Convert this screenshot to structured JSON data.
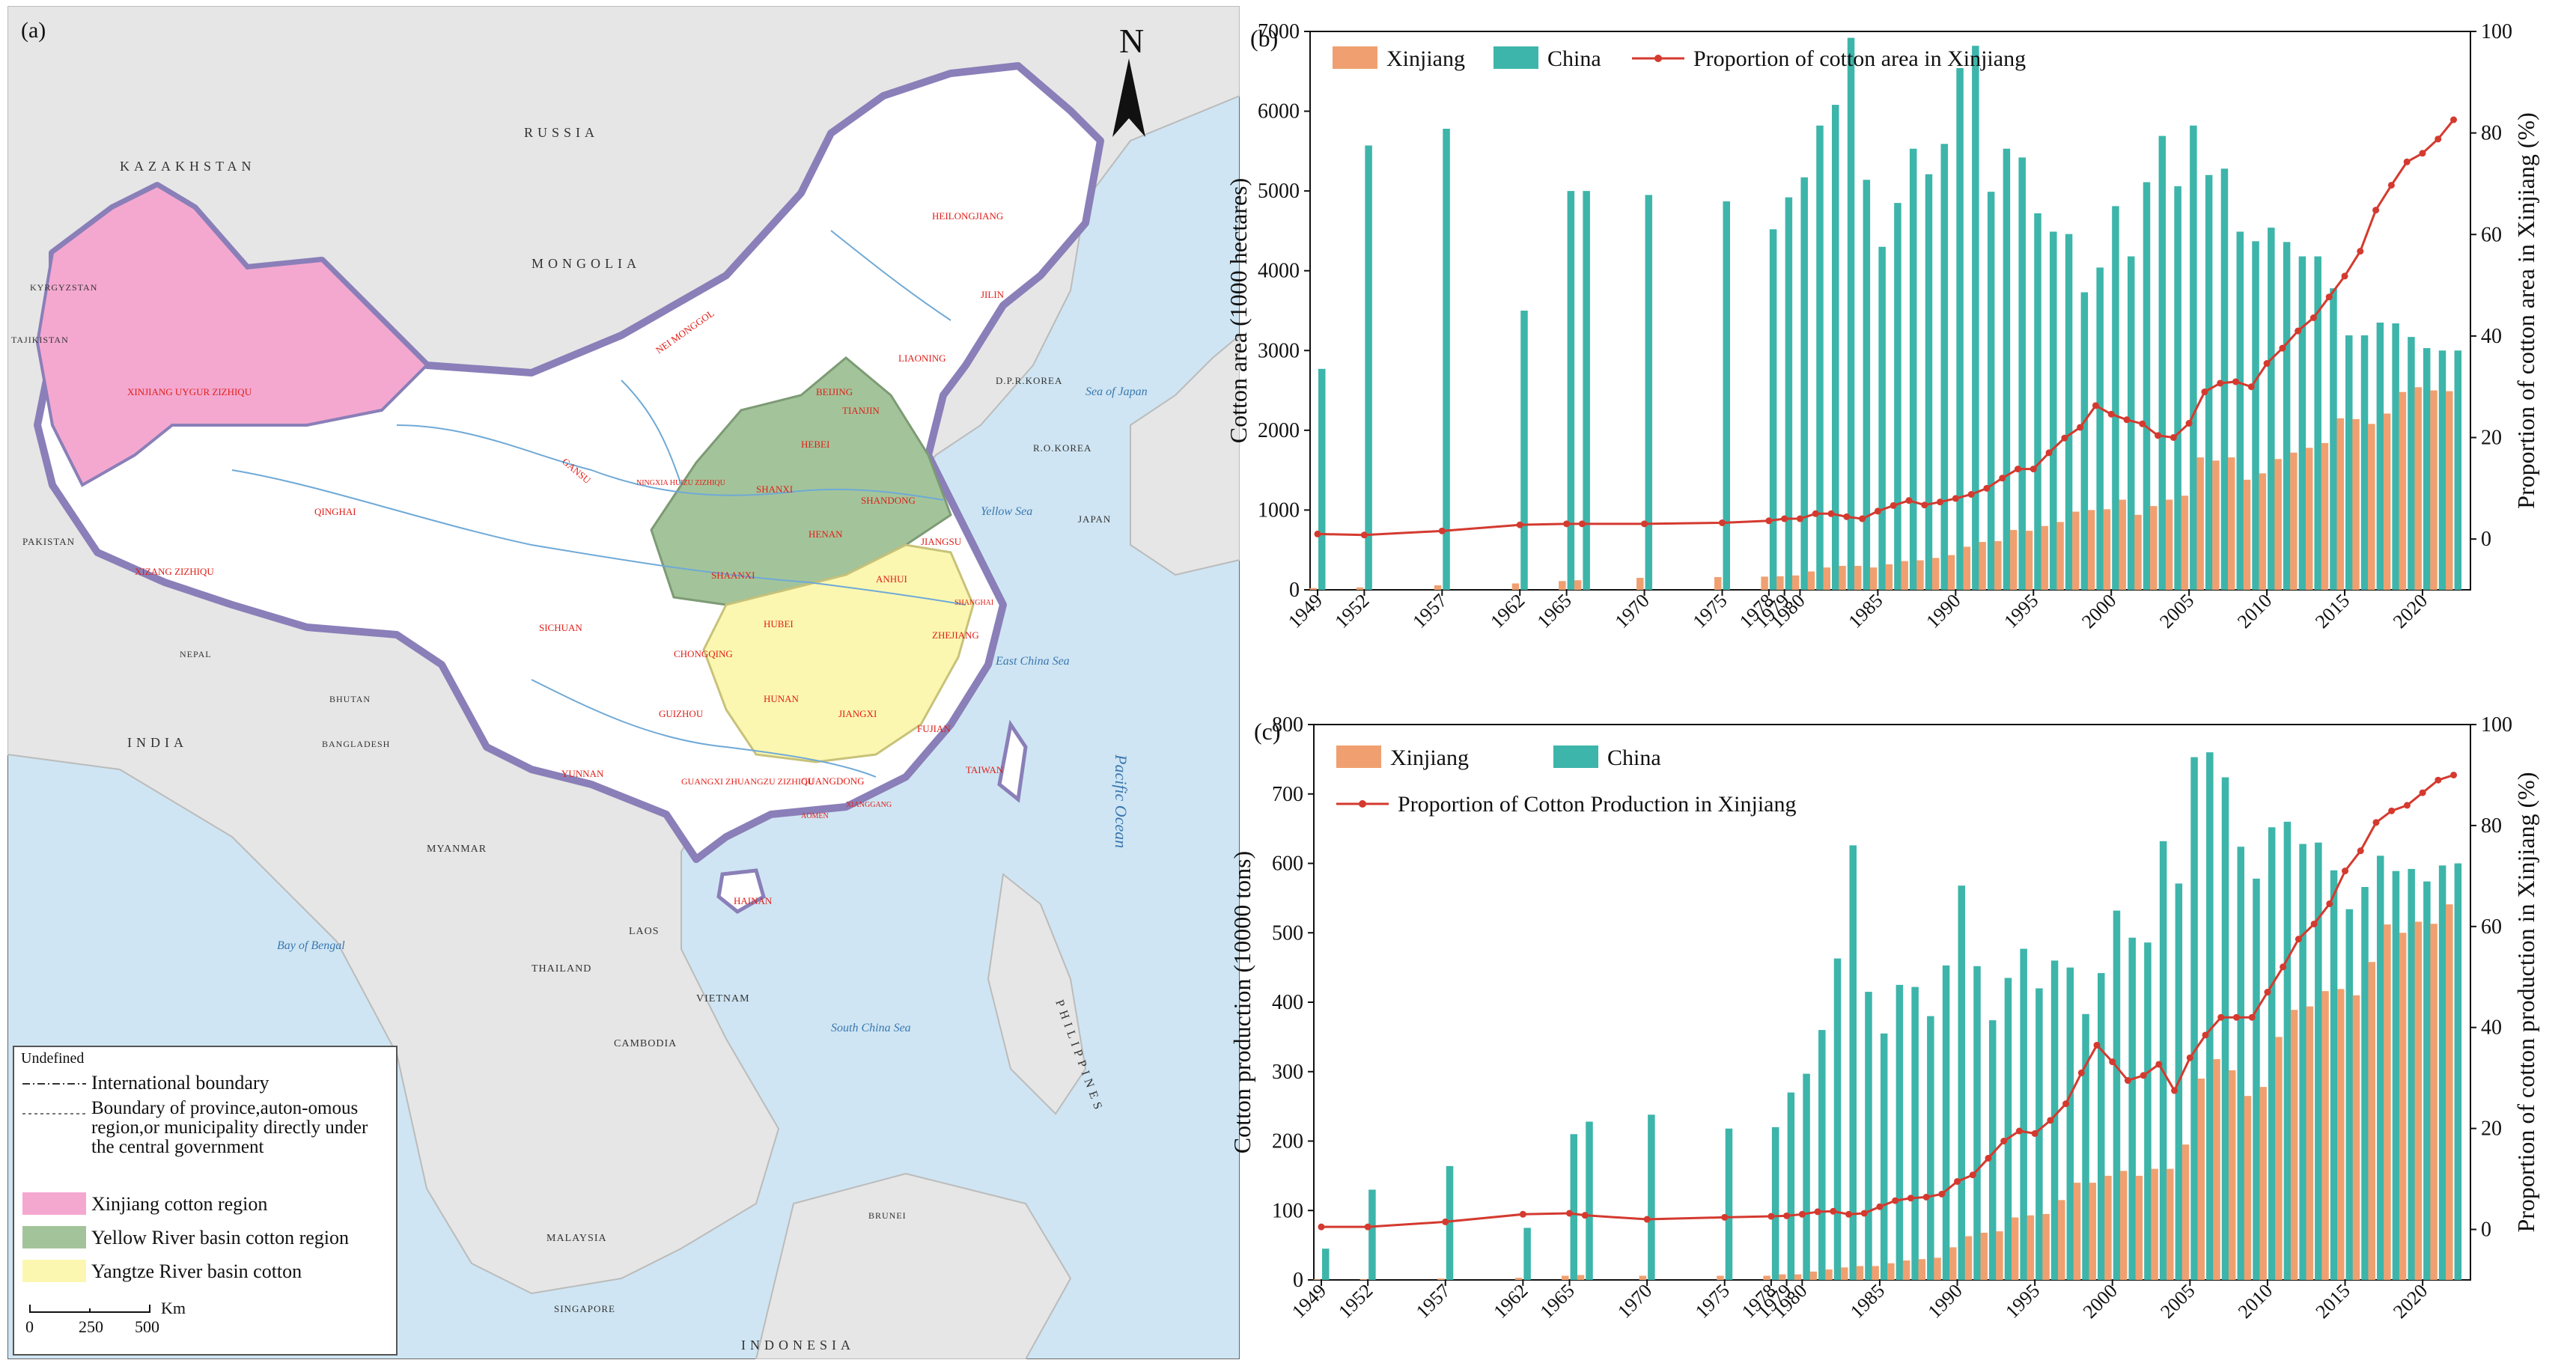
{
  "map_panel": {
    "panel_label": "(a)",
    "north_label": "N",
    "countries": [
      "KAZAKHSTAN",
      "RUSSIA",
      "MONGOLIA",
      "KYRGYZSTAN",
      "TAJIKISTAN",
      "PAKISTAN",
      "INDIA",
      "NEPAL",
      "BHUTAN",
      "BANGLADESH",
      "MYANMAR",
      "LAOS",
      "THAILAND",
      "VIETNAM",
      "CAMBODIA",
      "MALAYSIA",
      "SINGAPORE",
      "INDONESIA",
      "BRUNEI",
      "PHILIPPINES",
      "D.P.R.KOREA",
      "R.O.KOREA",
      "JAPAN"
    ],
    "seas": [
      "Sea of Japan",
      "Yellow Sea",
      "East China Sea",
      "South China Sea",
      "Bay of Bengal",
      "Pacific Ocean"
    ],
    "provinces": [
      "XINJIANG UYGUR ZIZHIQU",
      "XIZANG ZIZHIQU",
      "QINGHAI",
      "GANSU",
      "NEI MONGGOL",
      "HEILONGJIANG",
      "JILIN",
      "LIAONING",
      "BEIJING",
      "TIANJIN",
      "HEBEI",
      "SHANXI",
      "SHANDONG",
      "HENAN",
      "SHAANXI",
      "NINGXIA HUIZU ZIZHIQU",
      "SICHUAN",
      "CHONGQING",
      "HUBEI",
      "ANHUI",
      "JIANGSU",
      "SHANGHAI",
      "ZHEJIANG",
      "HUNAN",
      "JIANGXI",
      "FUJIAN",
      "GUIZHOU",
      "YUNNAN",
      "GUANGXI ZHUANGZU ZIZHIQU",
      "GUANGDONG",
      "HAINAN",
      "TAIWAN",
      "XIANGGANG",
      "AOMEN"
    ],
    "legend": {
      "title": "Undefined",
      "items": [
        {
          "type": "line-dash",
          "label": "International boundary"
        },
        {
          "type": "line-dot",
          "label": "Boundary of province,auton-omous region,or municipality directly under the central government"
        },
        {
          "type": "fill",
          "color": "#f4a8d0",
          "label": "Xinjiang cotton region"
        },
        {
          "type": "fill",
          "color": "#a3c49a",
          "label": "Yellow River basin cotton region"
        },
        {
          "type": "fill",
          "color": "#fbf7b0",
          "label": "Yangtze River basin cotton"
        }
      ],
      "scale_ticks": [
        "0",
        "250",
        "500"
      ],
      "scale_unit": "Km"
    }
  },
  "chart_data": [
    {
      "panel_label": "(b)",
      "type": "bar",
      "legend": [
        "Xinjiang",
        "China",
        "Proportion of cotton area in Xinjiang"
      ],
      "ylabel": "Cotton area (1000 hectares)",
      "y2label": "Proportion of cotton area in Xinjiang (%)",
      "ylim": [
        0,
        7000
      ],
      "y2lim": [
        -10,
        100
      ],
      "yticks": [
        0,
        1000,
        2000,
        3000,
        4000,
        5000,
        6000,
        7000
      ],
      "y2ticks": [
        0,
        20,
        40,
        60,
        80,
        100
      ],
      "xticks": [
        "1949",
        "1952",
        "1957",
        "1962",
        "1965",
        "1970",
        "1975",
        "1978",
        "1979",
        "1980",
        "1985",
        "1990",
        "1995",
        "2000",
        "2005",
        "2010",
        "2015",
        "2020"
      ],
      "years": [
        1949,
        1952,
        1957,
        1962,
        1965,
        1966,
        1970,
        1975,
        1978,
        1979,
        1980,
        1981,
        1982,
        1983,
        1984,
        1985,
        1986,
        1987,
        1988,
        1989,
        1990,
        1991,
        1992,
        1993,
        1994,
        1995,
        1996,
        1997,
        1998,
        1999,
        2000,
        2001,
        2002,
        2003,
        2004,
        2005,
        2006,
        2007,
        2008,
        2009,
        2010,
        2011,
        2012,
        2013,
        2014,
        2015,
        2016,
        2017,
        2018,
        2019,
        2020,
        2021,
        2022
      ],
      "series": [
        {
          "name": "Xinjiang",
          "type": "bar",
          "color": "#f0a070",
          "values": [
            22,
            30,
            56,
            80,
            110,
            120,
            150,
            160,
            165,
            170,
            180,
            230,
            280,
            300,
            300,
            280,
            320,
            360,
            370,
            400,
            435,
            540,
            600,
            610,
            750,
            740,
            800,
            850,
            980,
            1000,
            1010,
            1130,
            940,
            1050,
            1130,
            1180,
            1660,
            1620,
            1660,
            1380,
            1460,
            1640,
            1720,
            1780,
            1840,
            2150,
            2140,
            2080,
            2210,
            2480,
            2540,
            2500,
            2490
          ]
        },
        {
          "name": "China",
          "type": "bar",
          "color": "#3db5aa",
          "values": [
            2770,
            5570,
            5780,
            3500,
            5000,
            5000,
            4950,
            4870,
            4520,
            4920,
            5170,
            5820,
            6080,
            6920,
            5140,
            4300,
            4850,
            5530,
            5210,
            5590,
            6540,
            6820,
            4990,
            5530,
            5420,
            4720,
            4490,
            4460,
            3730,
            4040,
            4810,
            4180,
            5110,
            5690,
            5060,
            5820,
            5200,
            5280,
            4490,
            4370,
            4540,
            4360,
            4180,
            4180,
            3780,
            3190,
            3190,
            3350,
            3340,
            3170,
            3030,
            3000,
            3000
          ]
        },
        {
          "name": "Proportion of cotton area in Xinjiang",
          "type": "line",
          "axis": "right",
          "color": "#d43a2f",
          "values": [
            1,
            0.8,
            1.6,
            2.8,
            3,
            3,
            3,
            3.2,
            3.6,
            4,
            4,
            5,
            5,
            4.4,
            4,
            5.5,
            6.6,
            7.6,
            6.7,
            7.3,
            8,
            8.8,
            10,
            12,
            13.8,
            13.8,
            17,
            19.9,
            22,
            26.3,
            24.6,
            23.5,
            22.7,
            20.4,
            20,
            22.8,
            29,
            30.7,
            31,
            30,
            34.6,
            37.6,
            41,
            43.6,
            47.7,
            51.8,
            56.7,
            64.8,
            69.7,
            74.3,
            76,
            78.8,
            82.6
          ]
        }
      ]
    },
    {
      "panel_label": "(c)",
      "type": "bar",
      "legend": [
        "Xinjiang",
        "China",
        "Proportion of Cotton Production in Xinjiang"
      ],
      "ylabel": "Cotton production (10000 tons)",
      "y2label": "Proportion of cotton production in Xinjiang (%)",
      "ylim": [
        0,
        800
      ],
      "y2lim": [
        -10,
        100
      ],
      "yticks": [
        0,
        100,
        200,
        300,
        400,
        500,
        600,
        700,
        800
      ],
      "y2ticks": [
        0,
        20,
        40,
        60,
        80,
        100
      ],
      "xticks": [
        "1949",
        "1952",
        "1957",
        "1962",
        "1965",
        "1970",
        "1975",
        "1978",
        "1979",
        "1980",
        "1985",
        "1990",
        "1995",
        "2000",
        "2005",
        "2010",
        "2015",
        "2020"
      ],
      "years": [
        1949,
        1952,
        1957,
        1962,
        1965,
        1966,
        1970,
        1975,
        1978,
        1979,
        1980,
        1981,
        1982,
        1983,
        1984,
        1985,
        1986,
        1987,
        1988,
        1989,
        1990,
        1991,
        1992,
        1993,
        1994,
        1995,
        1996,
        1997,
        1998,
        1999,
        2000,
        2001,
        2002,
        2003,
        2004,
        2005,
        2006,
        2007,
        2008,
        2009,
        2010,
        2011,
        2012,
        2013,
        2014,
        2015,
        2016,
        2017,
        2018,
        2019,
        2020,
        2021,
        2022
      ],
      "series": [
        {
          "name": "Xinjiang",
          "type": "bar",
          "color": "#f0a070",
          "values": [
            1,
            1,
            2,
            3,
            6,
            7,
            6,
            6,
            6,
            8,
            8,
            12,
            15,
            18,
            20,
            20,
            24,
            28,
            30,
            32,
            47,
            63,
            68,
            70,
            90,
            93,
            95,
            115,
            140,
            140,
            150,
            157,
            150,
            160,
            160,
            195,
            290,
            318,
            302,
            265,
            278,
            350,
            389,
            394,
            416,
            419,
            410,
            458,
            512,
            500,
            516,
            513,
            541
          ]
        },
        {
          "name": "China",
          "type": "bar",
          "color": "#3db5aa",
          "values": [
            45,
            130,
            164,
            75,
            210,
            228,
            238,
            218,
            220,
            270,
            297,
            360,
            463,
            626,
            415,
            355,
            425,
            422,
            380,
            453,
            568,
            452,
            374,
            435,
            477,
            420,
            460,
            450,
            383,
            442,
            532,
            493,
            486,
            632,
            571,
            753,
            760,
            724,
            624,
            578,
            652,
            660,
            628,
            630,
            590,
            534,
            566,
            611,
            589,
            592,
            574,
            597,
            600
          ]
        },
        {
          "name": "Proportion of Cotton Production in Xinjiang",
          "type": "line",
          "axis": "right",
          "color": "#d43a2f",
          "values": [
            0.5,
            0.5,
            1.5,
            3,
            3.2,
            2.8,
            2,
            2.4,
            2.6,
            2.7,
            3,
            3.5,
            3.6,
            3,
            3.2,
            4.5,
            5.7,
            6.2,
            6.4,
            7,
            9.5,
            10.8,
            14.1,
            17.5,
            19.5,
            19,
            21.6,
            24.9,
            31,
            36.5,
            33.2,
            29.5,
            30.5,
            32.7,
            27.5,
            34,
            38.5,
            42,
            42,
            42,
            47,
            52,
            57.5,
            60.5,
            64.5,
            71,
            75,
            80.6,
            82.9,
            84,
            86.5,
            89,
            90
          ]
        }
      ]
    }
  ]
}
